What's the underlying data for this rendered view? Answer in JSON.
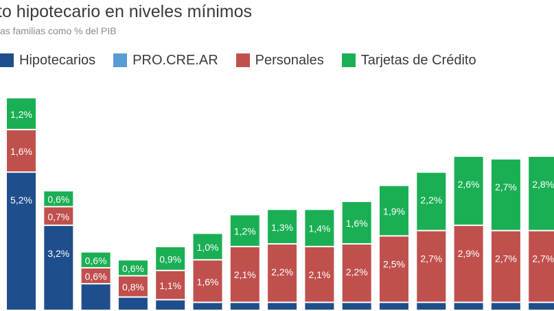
{
  "title": "to hipotecario en niveles mínimos",
  "subtitle": "as familias como % del PIB",
  "colors": {
    "hipotecarios": "#1f4e8c",
    "procrear": "#5b9bd5",
    "personales": "#c0504d",
    "tarjetas": "#1aaf54"
  },
  "legend": [
    {
      "label": "Hipotecarios",
      "color": "#1f4e8c"
    },
    {
      "label": "PRO.CRE.AR",
      "color": "#5b9bd5"
    },
    {
      "label": "Personales",
      "color": "#c0504d"
    },
    {
      "label": "Tarjetas de Crédito",
      "color": "#1aaf54"
    }
  ],
  "chart_data": {
    "type": "bar",
    "stacked": true,
    "categories": [
      "",
      "",
      "",
      "",
      "",
      "",
      "",
      "",
      "",
      "",
      "",
      "",
      "",
      "",
      ""
    ],
    "series": [
      {
        "name": "Hipotecarios",
        "values": [
          5.2,
          3.2,
          1.0,
          0.5,
          0.4,
          0.3,
          0.3,
          0.3,
          0.3,
          0.3,
          0.3,
          0.3,
          0.3,
          0.3,
          0.3
        ],
        "labels": [
          "5,2%",
          "3,2%",
          "",
          "",
          "",
          "",
          "",
          "",
          "",
          "",
          "",
          "",
          "",
          "",
          ""
        ]
      },
      {
        "name": "PRO.CRE.AR",
        "values": [
          0,
          0,
          0,
          0,
          0,
          0,
          0,
          0,
          0,
          0,
          0,
          0,
          0,
          0,
          0
        ],
        "labels": [
          "",
          "",
          "",
          "",
          "",
          "",
          "",
          "",
          "",
          "",
          "",
          "",
          "",
          "",
          ""
        ]
      },
      {
        "name": "Personales",
        "values": [
          1.6,
          0.7,
          0.6,
          0.8,
          1.1,
          1.6,
          2.1,
          2.2,
          2.1,
          2.2,
          2.5,
          2.7,
          2.9,
          2.7,
          2.7
        ],
        "labels": [
          "1,6%",
          "0,7%",
          "0,6%",
          "0,8%",
          "1,1%",
          "1,6%",
          "2,1%",
          "2,2%",
          "2,1%",
          "2,2%",
          "2,5%",
          "2,7%",
          "2,9%",
          "2,7%",
          "2,7%"
        ]
      },
      {
        "name": "Tarjetas de Crédito",
        "values": [
          1.2,
          0.6,
          0.6,
          0.6,
          0.9,
          1.0,
          1.2,
          1.3,
          1.4,
          1.6,
          1.9,
          2.2,
          2.6,
          2.7,
          2.8
        ],
        "labels": [
          "1,2%",
          "0,6%",
          "0,6%",
          "0,6%",
          "0,9%",
          "1,0%",
          "1,2%",
          "1,3%",
          "1,4%",
          "1,6%",
          "1,9%",
          "2,2%",
          "2,6%",
          "2,7%",
          "2,8%"
        ]
      }
    ],
    "title": "to hipotecario en niveles mínimos",
    "ylabel": "",
    "grid": false,
    "legend_position": "top"
  }
}
